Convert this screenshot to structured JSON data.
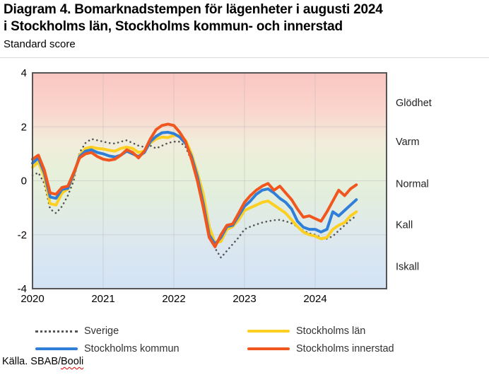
{
  "header": {
    "title_line1": "Diagram 4. Bomarknadstempen för lägenheter i augusti 2024",
    "title_line2": "i Stockholms län, Stockholms kommun- och innerstad",
    "subtitle": "Standard score"
  },
  "source": {
    "prefix": "Källa. SBAB/",
    "flagged_word": "Booli"
  },
  "chart_data": {
    "type": "line",
    "title": "Diagram 4. Bomarknadstempen för lägenheter i augusti 2024 i Stockholms län, Stockholms kommun- och innerstad",
    "subtitle": "Standard score",
    "x_unit": "month",
    "x_start": "2020-01",
    "x_end": "2024-08",
    "ylim": [
      -4,
      4
    ],
    "yticks": [
      4,
      2,
      0,
      -2,
      -4
    ],
    "xticks": [
      {
        "label": "2020",
        "month_index": 0
      },
      {
        "label": "2021",
        "month_index": 12
      },
      {
        "label": "2022",
        "month_index": 24
      },
      {
        "label": "2023",
        "month_index": 36
      },
      {
        "label": "2024",
        "month_index": 48
      }
    ],
    "grid": {
      "h_values": [
        2,
        0,
        -2
      ],
      "v_month_indices": [
        12,
        24,
        36,
        48
      ]
    },
    "zone_labels": [
      {
        "label": "Glödhet",
        "value": 2.9
      },
      {
        "label": "Varm",
        "value": 1.45
      },
      {
        "label": "Normal",
        "value": -0.1
      },
      {
        "label": "Kall",
        "value": -1.63
      },
      {
        "label": "Iskall",
        "value": -3.18
      }
    ],
    "background_gradient": [
      {
        "offset": 0.0,
        "color": "#f9c6c1"
      },
      {
        "offset": 0.18,
        "color": "#fad6cd"
      },
      {
        "offset": 0.32,
        "color": "#f1ecdb"
      },
      {
        "offset": 0.45,
        "color": "#e7f0da"
      },
      {
        "offset": 0.58,
        "color": "#e2eedd"
      },
      {
        "offset": 0.7,
        "color": "#dfeae9"
      },
      {
        "offset": 0.85,
        "color": "#d9e6f2"
      },
      {
        "offset": 1.0,
        "color": "#d3e3f4"
      }
    ],
    "frame_color": "#555555",
    "series": [
      {
        "name": "Sverige",
        "color": "#555555",
        "style": "dotted",
        "values": [
          0.2,
          0.3,
          -0.1,
          -1.05,
          -1.2,
          -0.95,
          -0.55,
          0,
          1.05,
          1.4,
          1.55,
          1.5,
          1.45,
          1.4,
          1.38,
          1.45,
          1.5,
          1.4,
          1.3,
          1.25,
          1.3,
          1.2,
          1.3,
          1.4,
          1.45,
          1.45,
          1.25,
          0.75,
          0,
          -0.6,
          -1.6,
          -2.5,
          -2.85,
          -2.6,
          -2.35,
          -2.1,
          -1.8,
          -1.7,
          -1.62,
          -1.55,
          -1.5,
          -1.46,
          -1.45,
          -1.5,
          -1.58,
          -1.7,
          -1.85,
          -1.95,
          -2,
          -2.1,
          -2.15,
          -2.05,
          -1.85,
          -1.65,
          -1.45,
          -1.3
        ]
      },
      {
        "name": "Stockholms län",
        "color": "#fccf20",
        "style": "solid",
        "values": [
          0.5,
          0.7,
          0.15,
          -0.85,
          -0.9,
          -0.45,
          -0.3,
          0.2,
          0.95,
          1.2,
          1.25,
          1.2,
          1.18,
          1.13,
          1.1,
          1.2,
          1.25,
          1.2,
          1.05,
          1.1,
          1.4,
          1.55,
          1.62,
          1.6,
          1.68,
          1.68,
          1.5,
          1,
          0.3,
          -0.5,
          -1.7,
          -2.3,
          -2.25,
          -1.8,
          -1.7,
          -1.45,
          -1.1,
          -1,
          -0.9,
          -0.8,
          -0.75,
          -0.9,
          -1.05,
          -1.2,
          -1.45,
          -1.7,
          -1.9,
          -2,
          -2.05,
          -2.15,
          -2.1,
          -1.8,
          -1.65,
          -1.55,
          -1.3,
          -1.15
        ]
      },
      {
        "name": "Stockholms kommun",
        "color": "#2f7ed8",
        "style": "solid",
        "values": [
          0.65,
          0.85,
          0.3,
          -0.6,
          -0.65,
          -0.32,
          -0.28,
          0.25,
          0.9,
          1.1,
          1.15,
          1.05,
          1,
          0.92,
          0.88,
          0.95,
          1.1,
          1,
          0.9,
          1.05,
          1.45,
          1.65,
          1.78,
          1.8,
          1.75,
          1.62,
          1.38,
          0.9,
          0.15,
          -0.85,
          -2,
          -2.35,
          -2.1,
          -1.7,
          -1.65,
          -1.3,
          -0.95,
          -0.75,
          -0.5,
          -0.35,
          -0.3,
          -0.45,
          -0.65,
          -0.8,
          -1.05,
          -1.5,
          -1.72,
          -1.8,
          -1.8,
          -1.9,
          -1.8,
          -1.15,
          -1.3,
          -1.1,
          -0.9,
          -0.7
        ]
      },
      {
        "name": "Stockholms innerstad",
        "color": "#f0561e",
        "style": "solid",
        "values": [
          0.8,
          0.95,
          0.4,
          -0.45,
          -0.5,
          -0.25,
          -0.2,
          0.3,
          0.85,
          1,
          1.05,
          0.9,
          0.8,
          0.76,
          0.8,
          0.95,
          1.15,
          1.05,
          0.85,
          1.1,
          1.55,
          1.9,
          2.05,
          2.1,
          2.05,
          1.8,
          1.45,
          0.8,
          0,
          -1,
          -2.1,
          -2.45,
          -2,
          -1.65,
          -1.6,
          -1.2,
          -0.8,
          -0.55,
          -0.35,
          -0.2,
          -0.1,
          -0.35,
          -0.2,
          -0.45,
          -0.7,
          -1.05,
          -1.35,
          -1.3,
          -1.4,
          -1.5,
          -1.15,
          -0.75,
          -0.35,
          -0.55,
          -0.3,
          -0.15
        ]
      }
    ],
    "legend_order": [
      0,
      1,
      2,
      3
    ]
  }
}
